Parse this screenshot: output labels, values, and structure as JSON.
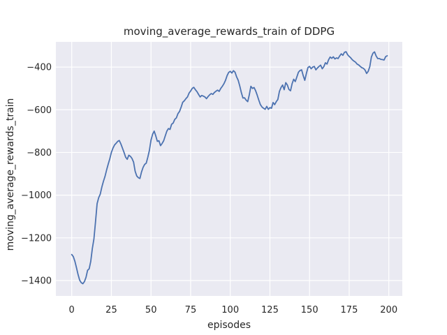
{
  "figure": {
    "title": "moving_average_rewards_train of DDPG",
    "xlabel": "episodes",
    "ylabel": "moving_average_rewards_train"
  },
  "colors": {
    "line": "#4c72b0",
    "plot_background": "#eaeaf2",
    "grid": "#ffffff",
    "text": "#262626",
    "figure_background": "#ffffff"
  },
  "chart_data": {
    "type": "line",
    "title": "moving_average_rewards_train of DDPG",
    "xlabel": "episodes",
    "ylabel": "moving_average_rewards_train",
    "grid": true,
    "legend_position": "none",
    "x_ticks": [
      0,
      25,
      50,
      75,
      100,
      125,
      150,
      175,
      200
    ],
    "y_ticks": [
      -400,
      -600,
      -800,
      -1000,
      -1200,
      -1400
    ],
    "y_tick_labels": [
      "−400",
      "−600",
      "−800",
      "−1000",
      "−1200",
      "−1400"
    ],
    "xlim": [
      -10,
      208.5
    ],
    "ylim": [
      -1472,
      -282
    ],
    "series": [
      {
        "name": "moving_average_rewards_train",
        "color": "#4c72b0",
        "x": [
          0,
          1,
          2,
          3,
          4,
          5,
          6,
          7,
          8,
          9,
          10,
          11,
          12,
          13,
          14,
          15,
          16,
          17,
          18,
          19,
          20,
          21,
          22,
          23,
          24,
          25,
          26,
          27,
          28,
          29,
          30,
          31,
          32,
          33,
          34,
          35,
          36,
          37,
          38,
          39,
          40,
          41,
          42,
          43,
          44,
          45,
          46,
          47,
          48,
          49,
          50,
          51,
          52,
          53,
          54,
          55,
          56,
          57,
          58,
          59,
          60,
          61,
          62,
          63,
          64,
          65,
          66,
          67,
          68,
          69,
          70,
          71,
          72,
          73,
          74,
          75,
          76,
          77,
          78,
          79,
          80,
          81,
          82,
          83,
          84,
          85,
          86,
          87,
          88,
          89,
          90,
          91,
          92,
          93,
          94,
          95,
          96,
          97,
          98,
          99,
          100,
          101,
          102,
          103,
          104,
          105,
          106,
          107,
          108,
          109,
          110,
          111,
          112,
          113,
          114,
          115,
          116,
          117,
          118,
          119,
          120,
          121,
          122,
          123,
          124,
          125,
          126,
          127,
          128,
          129,
          130,
          131,
          132,
          133,
          134,
          135,
          136,
          137,
          138,
          139,
          140,
          141,
          142,
          143,
          144,
          145,
          146,
          147,
          148,
          149,
          150,
          151,
          152,
          153,
          154,
          155,
          156,
          157,
          158,
          159,
          160,
          161,
          162,
          163,
          164,
          165,
          166,
          167,
          168,
          169,
          170,
          171,
          172,
          173,
          174,
          175,
          176,
          177,
          178,
          179,
          180,
          181,
          182,
          183,
          184,
          185,
          186,
          187,
          188,
          189,
          190,
          191,
          192,
          193,
          194,
          195,
          196,
          197,
          198,
          199
        ],
        "y": [
          -1278,
          -1288,
          -1310,
          -1340,
          -1372,
          -1398,
          -1410,
          -1415,
          -1405,
          -1385,
          -1352,
          -1345,
          -1310,
          -1250,
          -1205,
          -1125,
          -1040,
          -1012,
          -995,
          -962,
          -935,
          -912,
          -882,
          -855,
          -830,
          -800,
          -780,
          -765,
          -757,
          -748,
          -744,
          -760,
          -780,
          -800,
          -822,
          -832,
          -813,
          -818,
          -828,
          -845,
          -888,
          -910,
          -918,
          -922,
          -892,
          -870,
          -856,
          -850,
          -822,
          -790,
          -742,
          -715,
          -700,
          -722,
          -748,
          -745,
          -768,
          -758,
          -745,
          -722,
          -700,
          -688,
          -692,
          -668,
          -662,
          -645,
          -638,
          -618,
          -608,
          -588,
          -565,
          -558,
          -548,
          -540,
          -522,
          -512,
          -500,
          -495,
          -506,
          -515,
          -528,
          -540,
          -533,
          -536,
          -540,
          -548,
          -538,
          -530,
          -524,
          -528,
          -519,
          -513,
          -508,
          -514,
          -500,
          -490,
          -478,
          -462,
          -440,
          -425,
          -420,
          -428,
          -417,
          -424,
          -446,
          -462,
          -489,
          -520,
          -545,
          -544,
          -555,
          -562,
          -530,
          -490,
          -500,
          -496,
          -511,
          -532,
          -555,
          -576,
          -587,
          -593,
          -598,
          -584,
          -598,
          -590,
          -593,
          -566,
          -576,
          -562,
          -552,
          -514,
          -496,
          -484,
          -506,
          -473,
          -484,
          -505,
          -511,
          -478,
          -457,
          -468,
          -446,
          -424,
          -416,
          -413,
          -440,
          -462,
          -430,
          -402,
          -397,
          -408,
          -400,
          -397,
          -413,
          -404,
          -397,
          -391,
          -408,
          -398,
          -380,
          -386,
          -366,
          -353,
          -359,
          -352,
          -362,
          -357,
          -360,
          -348,
          -338,
          -345,
          -331,
          -328,
          -342,
          -350,
          -357,
          -366,
          -372,
          -377,
          -386,
          -390,
          -397,
          -403,
          -406,
          -414,
          -430,
          -420,
          -398,
          -353,
          -335,
          -329,
          -348,
          -360,
          -360,
          -364,
          -365,
          -367,
          -351,
          -347
        ]
      }
    ]
  }
}
